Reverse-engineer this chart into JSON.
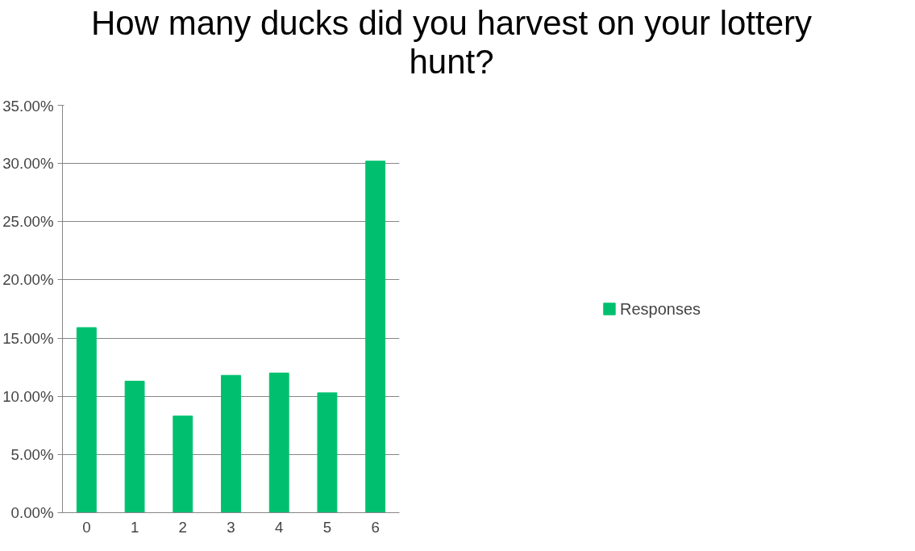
{
  "chart_data": {
    "type": "bar",
    "title": "How many ducks did you harvest on your lottery hunt?",
    "categories": [
      "0",
      "1",
      "2",
      "3",
      "4",
      "5",
      "6"
    ],
    "series": [
      {
        "name": "Responses",
        "color": "#00c06f",
        "values": [
          15.9,
          11.3,
          8.3,
          11.8,
          12.0,
          10.3,
          30.2
        ]
      }
    ],
    "ylim": [
      0,
      35
    ],
    "yticks": [
      {
        "value": 0,
        "label": "0.00%"
      },
      {
        "value": 5,
        "label": "5.00%"
      },
      {
        "value": 10,
        "label": "10.00%"
      },
      {
        "value": 15,
        "label": "15.00%"
      },
      {
        "value": 20,
        "label": "20.00%"
      },
      {
        "value": 25,
        "label": "25.00%"
      },
      {
        "value": 30,
        "label": "30.00%"
      },
      {
        "value": 35,
        "label": "35.00%"
      }
    ],
    "grid": "y",
    "legend": "right"
  }
}
